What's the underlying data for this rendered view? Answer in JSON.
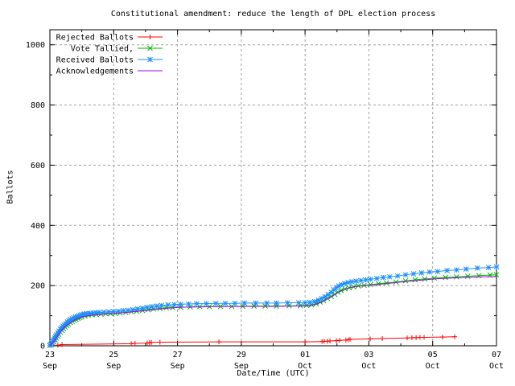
{
  "chart_data": {
    "type": "line",
    "title": "Constitutional amendment: reduce the length of DPL election process",
    "xlabel": "Date/Time (UTC)",
    "ylabel": "Ballots",
    "x_unit": "days since 23 Sep 00:00 UTC",
    "xlim": [
      0,
      14
    ],
    "ylim": [
      0,
      1050
    ],
    "grid": true,
    "grid_color": "#a0a0a0",
    "axis_color": "#000000",
    "background_color": "#ffffff",
    "x_ticks": [
      {
        "day": 0,
        "date": "23",
        "month": "Sep"
      },
      {
        "day": 2,
        "date": "25",
        "month": "Sep"
      },
      {
        "day": 4,
        "date": "27",
        "month": "Sep"
      },
      {
        "day": 6,
        "date": "29",
        "month": "Sep"
      },
      {
        "day": 8,
        "date": "01",
        "month": "Oct"
      },
      {
        "day": 10,
        "date": "03",
        "month": "Oct"
      },
      {
        "day": 12,
        "date": "05",
        "month": "Oct"
      },
      {
        "day": 14,
        "date": "07",
        "month": "Oct"
      }
    ],
    "x_minor_tick_days": [
      1,
      3,
      5,
      7,
      9,
      11,
      13
    ],
    "y_ticks": [
      {
        "value": 0,
        "label": "0"
      },
      {
        "value": 200,
        "label": "200"
      },
      {
        "value": 400,
        "label": "400"
      },
      {
        "value": 600,
        "label": "600"
      },
      {
        "value": 800,
        "label": "800"
      },
      {
        "value": 1000,
        "label": "1000"
      }
    ],
    "y_minor_tick_values": [
      100,
      300,
      500,
      700,
      900
    ],
    "legend": {
      "position": "top-left"
    },
    "series": [
      {
        "name": "Rejected Ballots",
        "color": "#ff0000",
        "marker": "plus",
        "points": [
          [
            0.25,
            2
          ],
          [
            0.38,
            4
          ],
          [
            2.55,
            7
          ],
          [
            2.67,
            8
          ],
          [
            3.05,
            9
          ],
          [
            3.12,
            10
          ],
          [
            3.18,
            11
          ],
          [
            3.45,
            12
          ],
          [
            5.3,
            13
          ],
          [
            8,
            13
          ],
          [
            8.53,
            14
          ],
          [
            8.6,
            15
          ],
          [
            8.7,
            15
          ],
          [
            8.78,
            16
          ],
          [
            8.98,
            17
          ],
          [
            9.08,
            18
          ],
          [
            9.28,
            19
          ],
          [
            9.35,
            20
          ],
          [
            9.41,
            21
          ],
          [
            10.04,
            23
          ],
          [
            10.42,
            24
          ],
          [
            11.2,
            26
          ],
          [
            11.35,
            27
          ],
          [
            11.48,
            27
          ],
          [
            11.6,
            28
          ],
          [
            11.73,
            28
          ],
          [
            12.31,
            29
          ],
          [
            12.69,
            30
          ]
        ]
      },
      {
        "name": "Vote Tallied,",
        "color": "#00b800",
        "marker": "cross",
        "points": [
          [
            0,
            1
          ],
          [
            0.04,
            4
          ],
          [
            0.08,
            9
          ],
          [
            0.12,
            14
          ],
          [
            0.16,
            20
          ],
          [
            0.2,
            26
          ],
          [
            0.24,
            32
          ],
          [
            0.28,
            38
          ],
          [
            0.33,
            45
          ],
          [
            0.38,
            51
          ],
          [
            0.43,
            57
          ],
          [
            0.48,
            62
          ],
          [
            0.53,
            67
          ],
          [
            0.58,
            72
          ],
          [
            0.64,
            77
          ],
          [
            0.7,
            81
          ],
          [
            0.76,
            85
          ],
          [
            0.82,
            88
          ],
          [
            0.88,
            91
          ],
          [
            0.94,
            94
          ],
          [
            1,
            96
          ],
          [
            1.1,
            99
          ],
          [
            1.2,
            101
          ],
          [
            1.32,
            103
          ],
          [
            1.45,
            104
          ],
          [
            1.6,
            105
          ],
          [
            1.75,
            106
          ],
          [
            1.9,
            107
          ],
          [
            2.05,
            108
          ],
          [
            2.2,
            109
          ],
          [
            2.38,
            111
          ],
          [
            2.55,
            113
          ],
          [
            2.72,
            115
          ],
          [
            2.9,
            117
          ],
          [
            3.08,
            120
          ],
          [
            3.25,
            122
          ],
          [
            3.45,
            124
          ],
          [
            3.65,
            126
          ],
          [
            3.85,
            127
          ],
          [
            4.1,
            128
          ],
          [
            4.4,
            129
          ],
          [
            4.7,
            130
          ],
          [
            5,
            130
          ],
          [
            5.35,
            131
          ],
          [
            5.7,
            131
          ],
          [
            6.05,
            131
          ],
          [
            6.4,
            132
          ],
          [
            6.75,
            132
          ],
          [
            7.1,
            132
          ],
          [
            7.5,
            133
          ],
          [
            7.85,
            133
          ],
          [
            8.05,
            134
          ],
          [
            8.2,
            136
          ],
          [
            8.35,
            140
          ],
          [
            8.47,
            145
          ],
          [
            8.58,
            150
          ],
          [
            8.7,
            157
          ],
          [
            8.82,
            164
          ],
          [
            8.93,
            171
          ],
          [
            9.03,
            178
          ],
          [
            9.13,
            184
          ],
          [
            9.25,
            189
          ],
          [
            9.38,
            193
          ],
          [
            9.52,
            196
          ],
          [
            9.67,
            199
          ],
          [
            9.85,
            201
          ],
          [
            10.05,
            203
          ],
          [
            10.3,
            206
          ],
          [
            10.55,
            209
          ],
          [
            10.85,
            212
          ],
          [
            11.15,
            216
          ],
          [
            11.45,
            219
          ],
          [
            11.75,
            222
          ],
          [
            12.05,
            225
          ],
          [
            12.4,
            227
          ],
          [
            12.75,
            229
          ],
          [
            13.1,
            231
          ],
          [
            13.45,
            233
          ],
          [
            13.8,
            235
          ],
          [
            14,
            236
          ]
        ]
      },
      {
        "name": "Received Ballots",
        "color": "#1e8fff",
        "marker": "star",
        "points": [
          [
            0,
            2
          ],
          [
            0.03,
            5
          ],
          [
            0.06,
            10
          ],
          [
            0.09,
            15
          ],
          [
            0.12,
            20
          ],
          [
            0.15,
            26
          ],
          [
            0.18,
            31
          ],
          [
            0.21,
            36
          ],
          [
            0.25,
            43
          ],
          [
            0.29,
            49
          ],
          [
            0.33,
            55
          ],
          [
            0.37,
            60
          ],
          [
            0.41,
            65
          ],
          [
            0.45,
            69
          ],
          [
            0.5,
            74
          ],
          [
            0.55,
            79
          ],
          [
            0.6,
            83
          ],
          [
            0.65,
            87
          ],
          [
            0.7,
            90
          ],
          [
            0.75,
            93
          ],
          [
            0.8,
            96
          ],
          [
            0.85,
            98
          ],
          [
            0.9,
            100
          ],
          [
            0.95,
            102
          ],
          [
            1,
            104
          ],
          [
            1.08,
            106
          ],
          [
            1.16,
            107
          ],
          [
            1.25,
            108
          ],
          [
            1.35,
            109
          ],
          [
            1.45,
            110
          ],
          [
            1.55,
            111
          ],
          [
            1.7,
            112
          ],
          [
            1.85,
            113
          ],
          [
            2,
            114
          ],
          [
            2.15,
            115
          ],
          [
            2.3,
            117
          ],
          [
            2.45,
            118
          ],
          [
            2.6,
            120
          ],
          [
            2.75,
            123
          ],
          [
            2.9,
            125
          ],
          [
            3.05,
            128
          ],
          [
            3.2,
            130
          ],
          [
            3.35,
            132
          ],
          [
            3.5,
            134
          ],
          [
            3.7,
            136
          ],
          [
            3.9,
            137
          ],
          [
            4.1,
            138
          ],
          [
            4.35,
            139
          ],
          [
            4.6,
            140
          ],
          [
            4.9,
            140
          ],
          [
            5.2,
            141
          ],
          [
            5.5,
            141
          ],
          [
            5.8,
            141
          ],
          [
            6.1,
            142
          ],
          [
            6.45,
            142
          ],
          [
            6.8,
            142
          ],
          [
            7.1,
            142
          ],
          [
            7.45,
            143
          ],
          [
            7.8,
            143
          ],
          [
            8,
            143
          ],
          [
            8.15,
            144
          ],
          [
            8.3,
            147
          ],
          [
            8.42,
            152
          ],
          [
            8.52,
            157
          ],
          [
            8.62,
            163
          ],
          [
            8.72,
            170
          ],
          [
            8.82,
            178
          ],
          [
            8.9,
            186
          ],
          [
            8.98,
            193
          ],
          [
            9.06,
            199
          ],
          [
            9.14,
            203
          ],
          [
            9.24,
            207
          ],
          [
            9.35,
            210
          ],
          [
            9.47,
            213
          ],
          [
            9.6,
            215
          ],
          [
            9.75,
            217
          ],
          [
            9.9,
            219
          ],
          [
            10.05,
            221
          ],
          [
            10.25,
            224
          ],
          [
            10.45,
            227
          ],
          [
            10.65,
            229
          ],
          [
            10.9,
            232
          ],
          [
            11.15,
            236
          ],
          [
            11.4,
            239
          ],
          [
            11.65,
            242
          ],
          [
            11.9,
            245
          ],
          [
            12.15,
            247
          ],
          [
            12.45,
            250
          ],
          [
            12.75,
            252
          ],
          [
            13.05,
            255
          ],
          [
            13.4,
            258
          ],
          [
            13.75,
            260
          ],
          [
            14,
            262
          ]
        ]
      },
      {
        "name": "Acknowledgements",
        "color": "#aa00ee",
        "marker": "none",
        "points": [
          [
            0,
            0
          ],
          [
            0.1,
            12
          ],
          [
            0.2,
            26
          ],
          [
            0.3,
            42
          ],
          [
            0.4,
            56
          ],
          [
            0.5,
            66
          ],
          [
            0.6,
            74
          ],
          [
            0.7,
            81
          ],
          [
            0.8,
            87
          ],
          [
            0.9,
            92
          ],
          [
            1,
            96
          ],
          [
            1.2,
            100
          ],
          [
            1.5,
            103
          ],
          [
            1.8,
            106
          ],
          [
            2.1,
            108
          ],
          [
            2.5,
            112
          ],
          [
            2.9,
            116
          ],
          [
            3.3,
            121
          ],
          [
            3.7,
            125
          ],
          [
            4.1,
            128
          ],
          [
            4.6,
            129
          ],
          [
            5.2,
            130
          ],
          [
            5.8,
            130
          ],
          [
            6.4,
            131
          ],
          [
            7,
            131
          ],
          [
            7.6,
            132
          ],
          [
            8,
            132
          ],
          [
            8.2,
            134
          ],
          [
            8.4,
            140
          ],
          [
            8.6,
            150
          ],
          [
            8.8,
            162
          ],
          [
            9,
            175
          ],
          [
            9.2,
            186
          ],
          [
            9.4,
            193
          ],
          [
            9.6,
            197
          ],
          [
            9.9,
            200
          ],
          [
            10.2,
            203
          ],
          [
            10.6,
            207
          ],
          [
            11,
            212
          ],
          [
            11.4,
            216
          ],
          [
            11.8,
            220
          ],
          [
            12.2,
            223
          ],
          [
            12.6,
            225
          ],
          [
            13,
            227
          ],
          [
            13.5,
            229
          ],
          [
            14,
            230
          ]
        ]
      }
    ]
  }
}
